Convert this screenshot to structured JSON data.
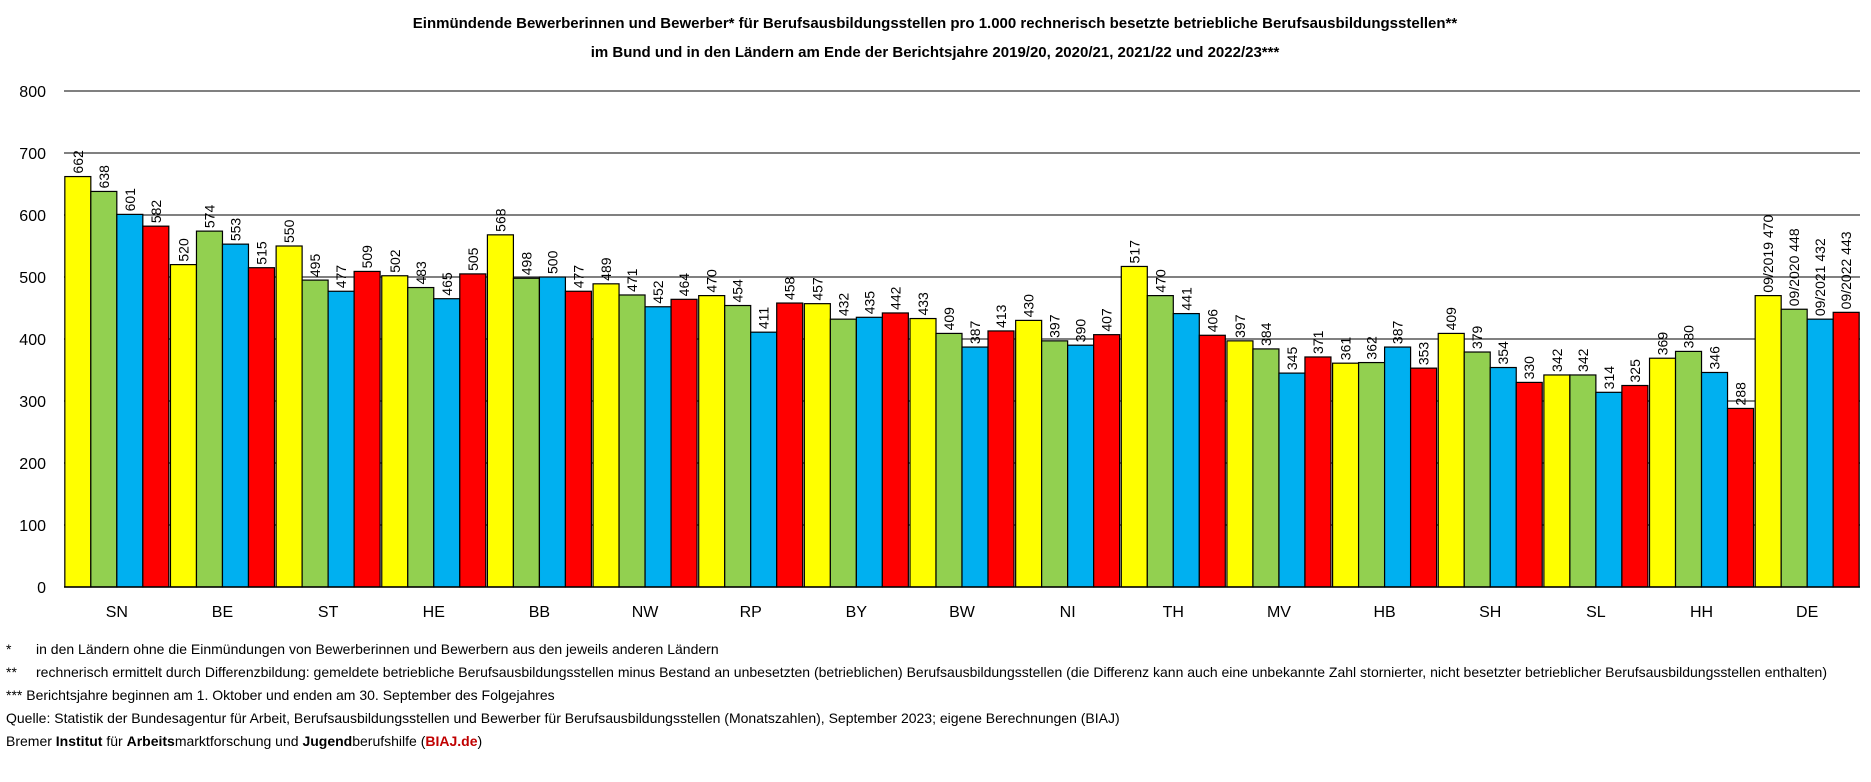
{
  "title_line1": "Einmündende Bewerberinnen und Bewerber* für Berufsausbildungsstellen pro 1.000 rechnerisch besetzte betriebliche Berufsausbildungsstellen**",
  "title_line2": "im Bund und in den Ländern am Ende der Berichtsjahre 2019/20, 2020/21, 2021/22 und 2022/23***",
  "chart_data": {
    "type": "bar",
    "title": "Einmündende Bewerberinnen und Bewerber* für Berufsausbildungsstellen pro 1.000 rechnerisch besetzte betriebliche Berufsausbildungsstellen** im Bund und in den Ländern am Ende der Berichtsjahre 2019/20, 2020/21, 2021/22 und 2022/23***",
    "categories": [
      "SN",
      "BE",
      "ST",
      "HE",
      "BB",
      "NW",
      "RP",
      "BY",
      "BW",
      "NI",
      "TH",
      "MV",
      "HB",
      "SH",
      "SL",
      "HH",
      "DE"
    ],
    "yticks": [
      "0",
      "100",
      "200",
      "300",
      "400",
      "500",
      "600",
      "700",
      "800"
    ],
    "ylim": [
      0,
      800
    ],
    "grid": true,
    "series": [
      {
        "name": "09/2019",
        "color": "#ffff00",
        "values": [
          662,
          520,
          550,
          502,
          568,
          489,
          470,
          457,
          433,
          430,
          517,
          397,
          361,
          409,
          342,
          369,
          470
        ]
      },
      {
        "name": "09/2020",
        "color": "#92d050",
        "values": [
          638,
          574,
          495,
          483,
          498,
          471,
          454,
          432,
          409,
          397,
          470,
          384,
          362,
          379,
          342,
          380,
          448
        ]
      },
      {
        "name": "09/2021",
        "color": "#00b0f0",
        "values": [
          601,
          553,
          477,
          465,
          500,
          452,
          411,
          435,
          387,
          390,
          441,
          345,
          387,
          354,
          314,
          346,
          432
        ]
      },
      {
        "name": "09/2022",
        "color": "#ff0000",
        "values": [
          582,
          515,
          509,
          505,
          477,
          464,
          458,
          442,
          413,
          407,
          406,
          371,
          353,
          330,
          325,
          288,
          443
        ]
      }
    ],
    "legend_placement": "inside DE group bar labels"
  },
  "footnotes": {
    "f1_marker": "*",
    "f1_text": "in den Ländern ohne die Einmündungen von Bewerberinnen und Bewerbern aus den jeweils anderen Ländern",
    "f2_marker": "**",
    "f2_text": "rechnerisch ermittelt durch Differenzbildung: gemeldete betriebliche Berufsausbildungsstellen minus Bestand an unbesetzten (betrieblichen) Berufsausbildungsstellen (die Differenz kann auch eine unbekannte Zahl stornierter, nicht besetzter betrieblicher Berufsausbildungsstellen enthalten)",
    "f3_marker": "***",
    "f3_text": "Berichtsjahre beginnen am 1. Oktober und enden am 30. September des Folgejahres",
    "source": "Quelle: Statistik der Bundesagentur für Arbeit, Berufsausbildungsstellen und Bewerber für Berufsausbildungsstellen (Monatszahlen), September 2023; eigene Berechnungen (BIAJ)",
    "credit": {
      "p1": "Bremer ",
      "b1": "Institut",
      "p2": " für ",
      "b2": "Arbeits",
      "p3": "marktforschung und ",
      "b3": "Jugend",
      "p4": "berufshilfe (",
      "link": "BIAJ.de",
      "p5": ")"
    }
  }
}
